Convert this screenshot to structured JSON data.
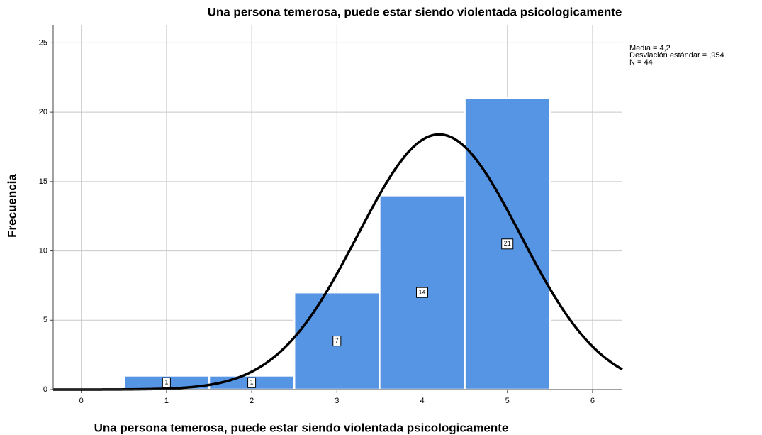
{
  "chart_data": {
    "type": "histogram",
    "title": "Una persona temerosa, puede estar siendo violentada psicologicamente",
    "x_label": "Una persona temerosa, puede estar siendo violentada psicologicamente",
    "y_label": "Frecuencia",
    "bins": [
      0.5,
      1.5,
      2.5,
      3.5,
      4.5,
      5.5
    ],
    "values": [
      1,
      1,
      7,
      14,
      21
    ],
    "color": "#5694e4",
    "xlim": [
      -0.33,
      6.35
    ],
    "xticks": [
      0,
      1,
      2,
      3,
      4,
      5,
      6
    ],
    "ylim": [
      0,
      26.3
    ],
    "yticks": [
      0,
      5,
      10,
      15,
      20,
      25
    ],
    "grid": true,
    "stats": [
      {
        "label": "Media = 4,2",
        "value": 4.2
      },
      {
        "label": "Desviación estándar = ,954",
        "value": 0.954
      },
      {
        "label": "N = 44",
        "value": 44
      }
    ]
  }
}
